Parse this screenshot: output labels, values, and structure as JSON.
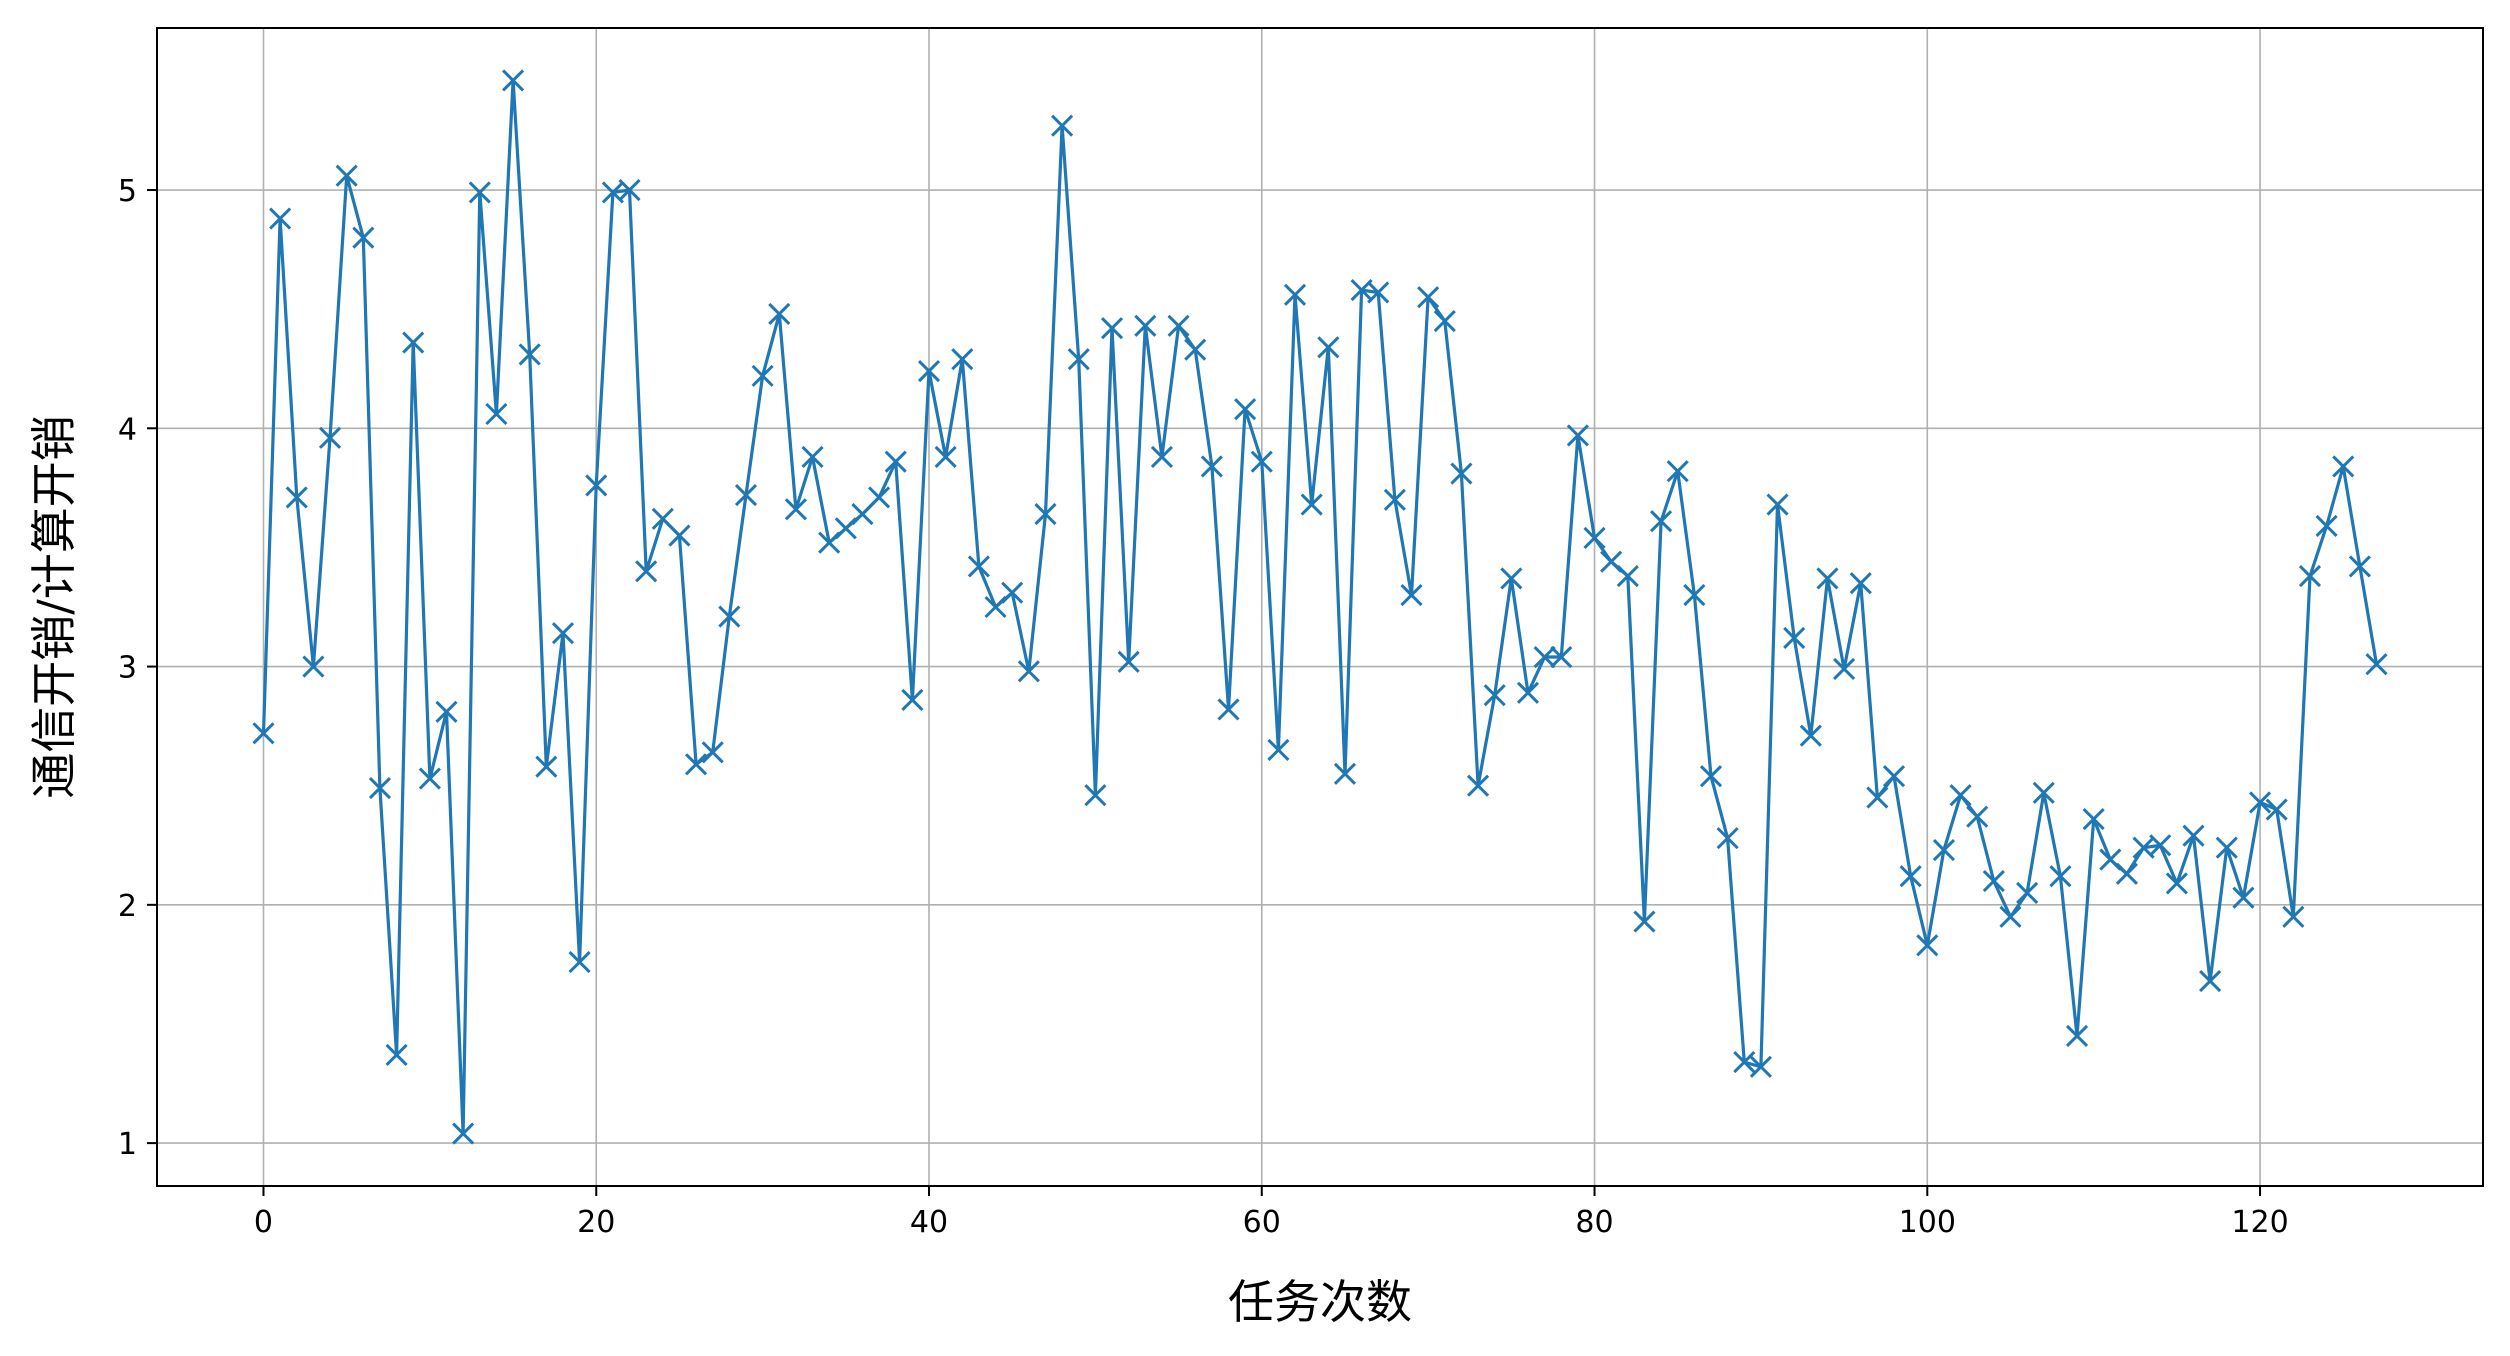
{
  "chart_data": {
    "type": "line",
    "title": "",
    "xlabel": "任务次数",
    "ylabel": "通信开销/计算开销",
    "xlim": [
      -6.4,
      133.4
    ],
    "ylim": [
      0.82,
      5.68
    ],
    "xticks": [
      0,
      20,
      40,
      60,
      80,
      100,
      120
    ],
    "yticks": [
      1,
      2,
      3,
      4,
      5
    ],
    "grid": true,
    "legend": "none",
    "series": [
      {
        "color": "#1f77b4",
        "marker": "x",
        "values": [
          2.72,
          4.88,
          3.71,
          3.0,
          3.96,
          5.06,
          4.8,
          2.49,
          1.37,
          4.36,
          2.53,
          2.81,
          1.04,
          4.99,
          4.06,
          5.46,
          4.31,
          2.58,
          3.14,
          1.76,
          3.76,
          4.99,
          5.0,
          3.4,
          3.62,
          3.55,
          2.59,
          2.64,
          3.21,
          3.72,
          4.22,
          4.48,
          3.66,
          3.88,
          3.52,
          3.58,
          3.64,
          3.71,
          3.86,
          2.86,
          4.24,
          3.88,
          4.29,
          3.42,
          3.25,
          3.31,
          2.98,
          3.64,
          5.27,
          4.29,
          2.46,
          4.42,
          3.02,
          4.43,
          3.88,
          4.43,
          4.33,
          3.84,
          2.82,
          4.08,
          3.86,
          2.65,
          4.56,
          3.68,
          4.34,
          2.55,
          4.58,
          4.57,
          3.7,
          3.3,
          4.55,
          4.45,
          3.81,
          2.5,
          2.88,
          3.37,
          2.89,
          3.04,
          3.04,
          3.97,
          3.54,
          3.44,
          3.38,
          1.93,
          3.61,
          3.82,
          3.3,
          2.54,
          2.28,
          1.34,
          1.32,
          3.68,
          3.12,
          2.71,
          3.37,
          2.99,
          3.35,
          2.45,
          2.54,
          2.12,
          1.83,
          2.23,
          2.46,
          2.37,
          2.1,
          1.95,
          2.05,
          2.47,
          2.12,
          1.45,
          2.36,
          2.19,
          2.13,
          2.24,
          2.25,
          2.09,
          2.29,
          1.68,
          2.24,
          2.03,
          2.43,
          2.4,
          1.95,
          3.38,
          3.59,
          3.84,
          3.42,
          3.01
        ]
      }
    ]
  }
}
